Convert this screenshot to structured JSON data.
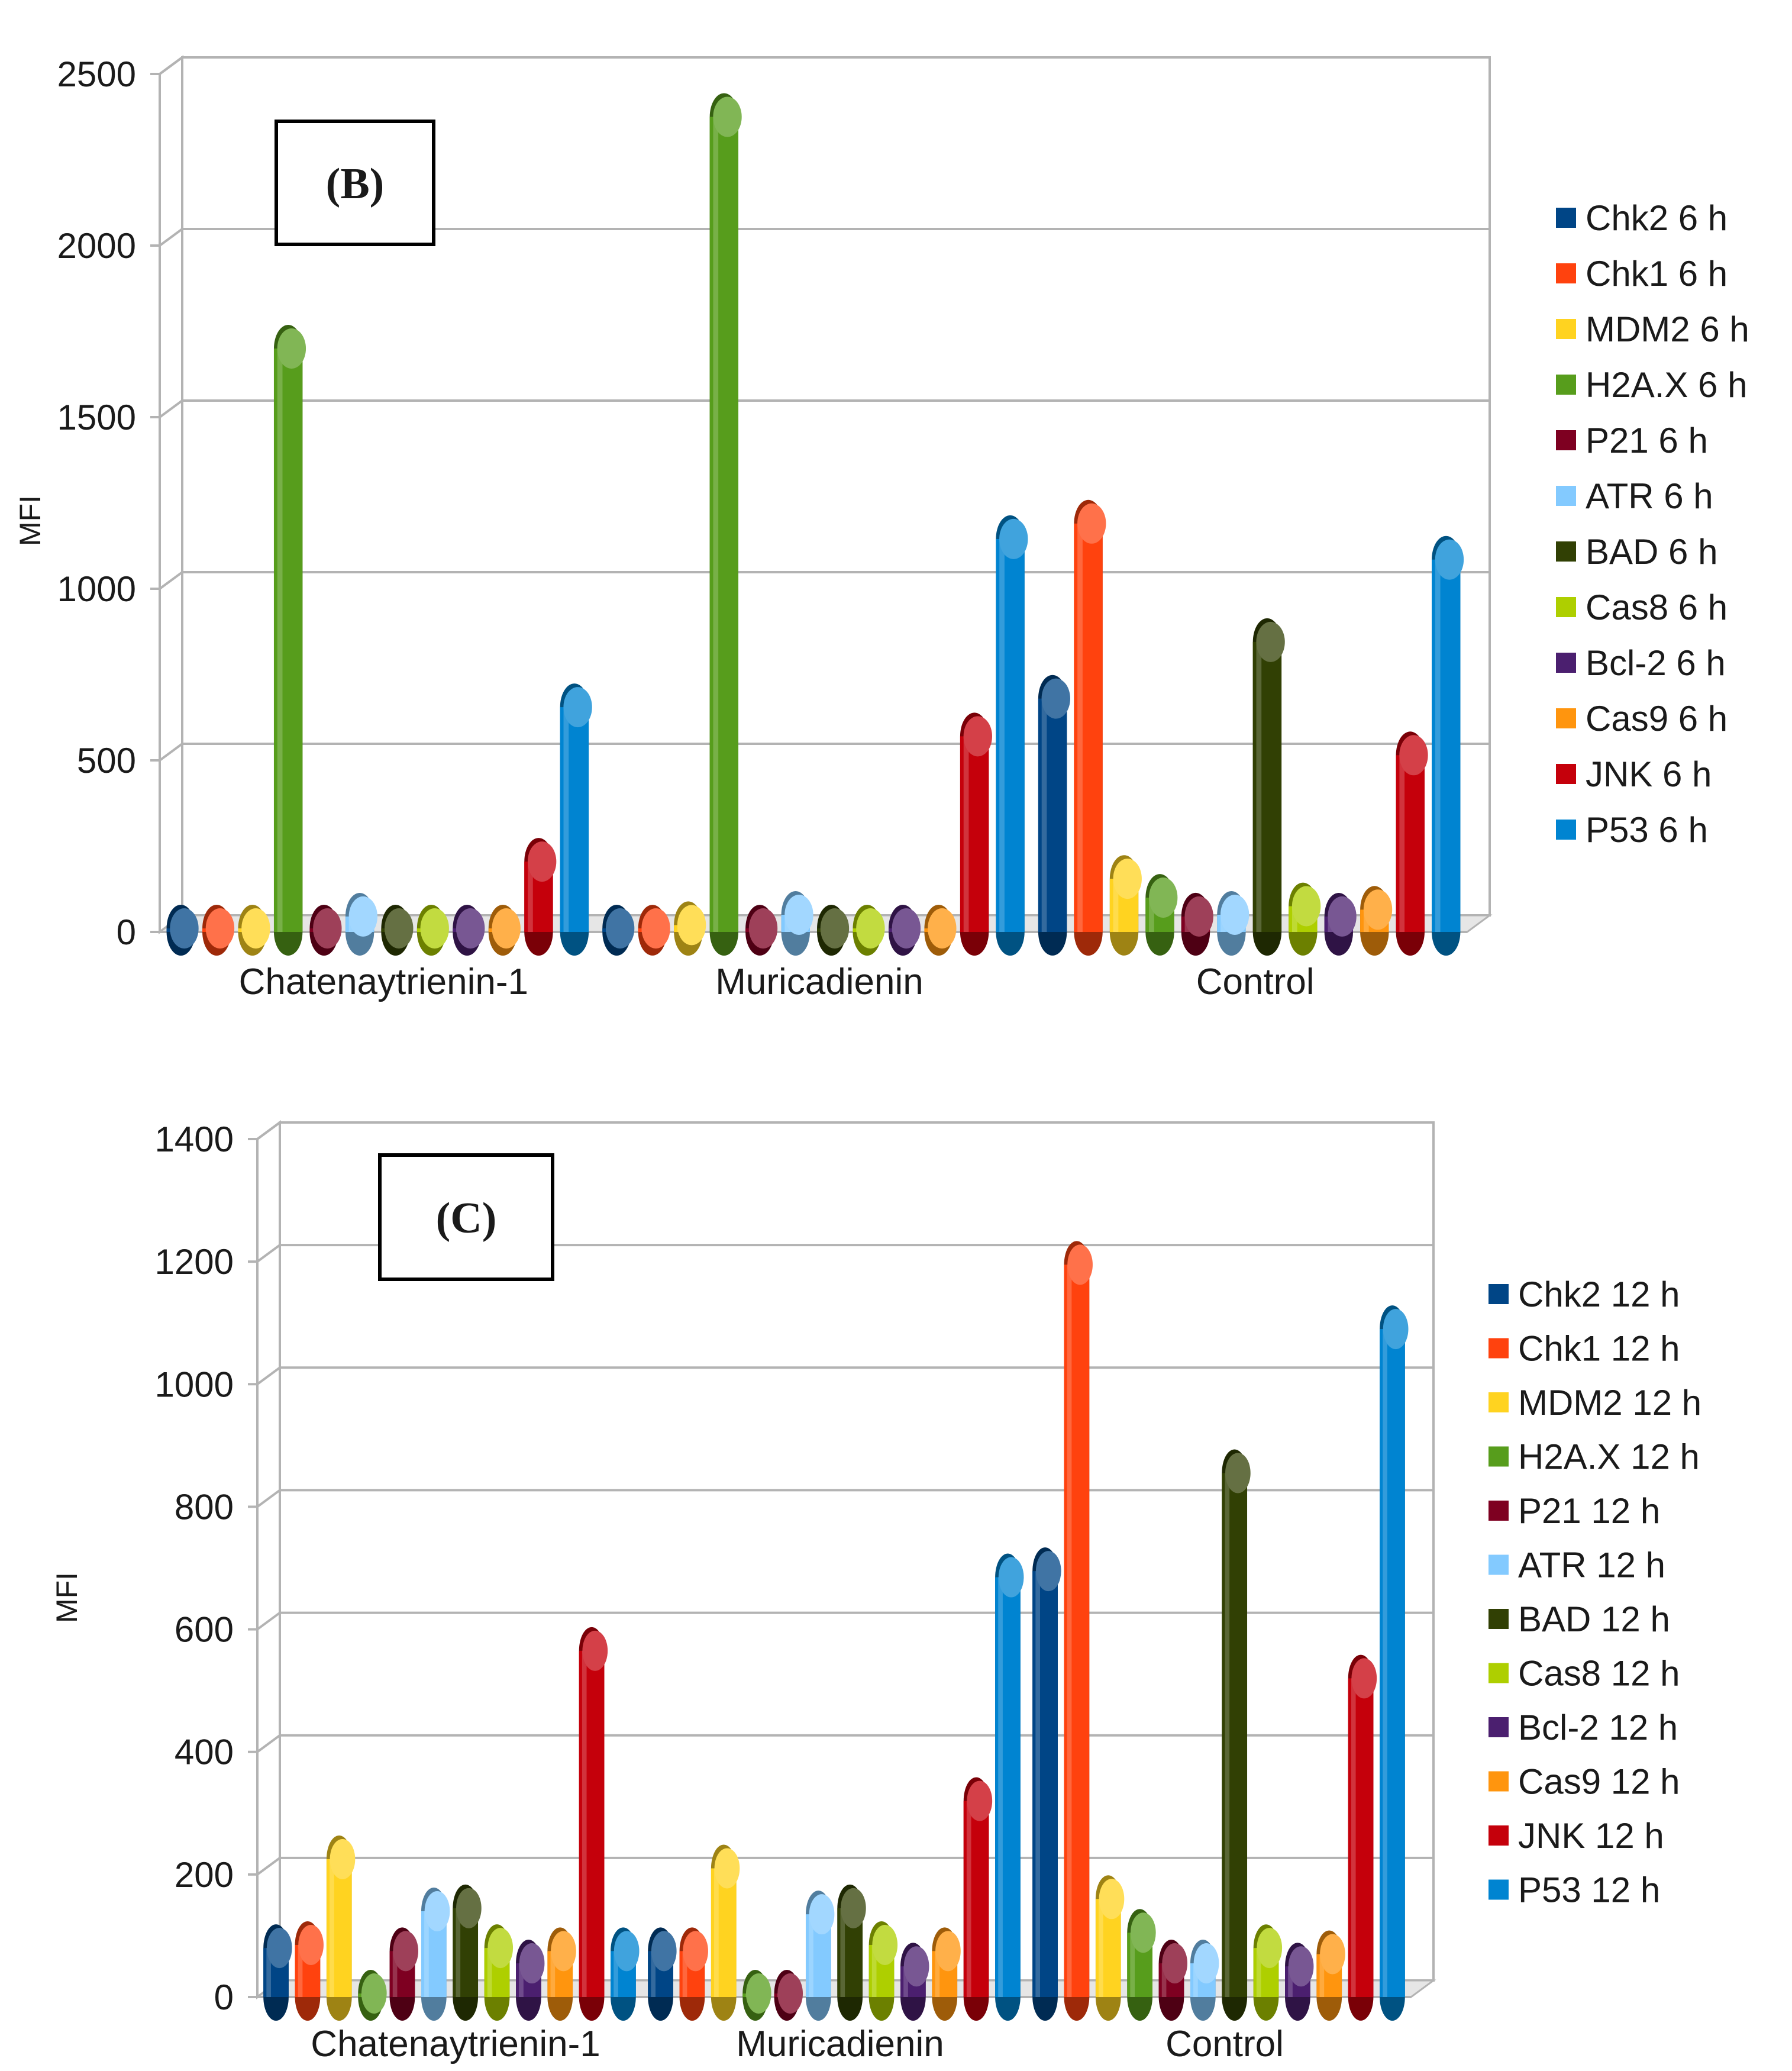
{
  "chart_data": [
    {
      "type": "bar",
      "panel_label": "(B)",
      "panel_letter": "B",
      "ylabel": "MFI",
      "ylim": [
        0,
        2500
      ],
      "yticks": [
        0,
        500,
        1000,
        1500,
        2000,
        2500
      ],
      "categories": [
        "Chatenaytrienin-1",
        "Muricadienin",
        "Control"
      ],
      "legend_position": "right",
      "series": [
        {
          "name": "Chk2 6 h",
          "color": "#004586",
          "values": [
            10,
            0,
            680
          ]
        },
        {
          "name": "Chk1 6 h",
          "color": "#ff420e",
          "values": [
            5,
            5,
            1190
          ]
        },
        {
          "name": "MDM2 6 h",
          "color": "#ffd320",
          "values": [
            10,
            20,
            155
          ]
        },
        {
          "name": "H2A.X 6 h",
          "color": "#579d1c",
          "values": [
            1700,
            2375,
            100
          ]
        },
        {
          "name": "P21 6 h",
          "color": "#7e0021",
          "values": [
            5,
            0,
            45
          ]
        },
        {
          "name": "ATR 6 h",
          "color": "#83caff",
          "values": [
            45,
            50,
            50
          ]
        },
        {
          "name": "BAD 6 h",
          "color": "#314004",
          "values": [
            10,
            5,
            845
          ]
        },
        {
          "name": "Cas8 6 h",
          "color": "#aecf00",
          "values": [
            5,
            5,
            75
          ]
        },
        {
          "name": "Bcl-2 6 h",
          "color": "#4b1f6f",
          "values": [
            5,
            5,
            45
          ]
        },
        {
          "name": "Cas9 6 h",
          "color": "#ff950e",
          "values": [
            5,
            5,
            65
          ]
        },
        {
          "name": "JNK 6 h",
          "color": "#c5000b",
          "values": [
            205,
            570,
            515
          ]
        },
        {
          "name": "P53 6 h",
          "color": "#0084d1",
          "values": [
            655,
            1145,
            1085
          ]
        }
      ]
    },
    {
      "type": "bar",
      "panel_label": "(C)",
      "panel_letter": "C",
      "ylabel": "MFI",
      "ylim": [
        0,
        1400
      ],
      "yticks": [
        0,
        200,
        400,
        600,
        800,
        1000,
        1200,
        1400
      ],
      "categories": [
        "Chatenaytrienin-1",
        "Muricadienin",
        "Control"
      ],
      "legend_position": "right",
      "series": [
        {
          "name": "Chk2 12 h",
          "color": "#004586",
          "values": [
            80,
            75,
            695
          ]
        },
        {
          "name": "Chk1 12 h",
          "color": "#ff420e",
          "values": [
            85,
            75,
            1195
          ]
        },
        {
          "name": "MDM2 12 h",
          "color": "#ffd320",
          "values": [
            225,
            210,
            160
          ]
        },
        {
          "name": "H2A.X 12 h",
          "color": "#579d1c",
          "values": [
            0,
            0,
            105
          ]
        },
        {
          "name": "P21 12 h",
          "color": "#7e0021",
          "values": [
            75,
            0,
            55
          ]
        },
        {
          "name": "ATR 12 h",
          "color": "#83caff",
          "values": [
            140,
            135,
            55
          ]
        },
        {
          "name": "BAD 12 h",
          "color": "#314004",
          "values": [
            145,
            145,
            855
          ]
        },
        {
          "name": "Cas8 12 h",
          "color": "#aecf00",
          "values": [
            80,
            85,
            80
          ]
        },
        {
          "name": "Bcl-2 12 h",
          "color": "#4b1f6f",
          "values": [
            55,
            50,
            50
          ]
        },
        {
          "name": "Cas9 12 h",
          "color": "#ff950e",
          "values": [
            75,
            75,
            70
          ]
        },
        {
          "name": "JNK 12 h",
          "color": "#c5000b",
          "values": [
            565,
            320,
            520
          ]
        },
        {
          "name": "P53 12 h",
          "color": "#0084d1",
          "values": [
            75,
            685,
            1090
          ]
        }
      ]
    }
  ]
}
